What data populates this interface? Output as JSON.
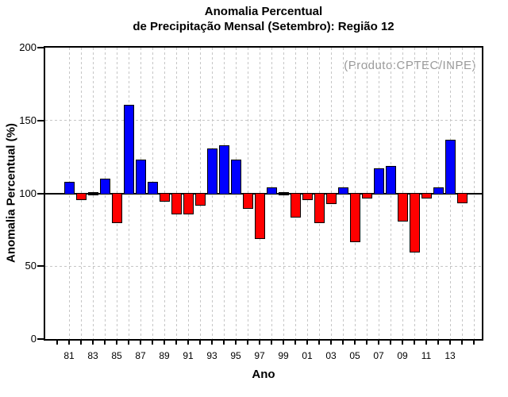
{
  "title": {
    "line1": "Anomalia Percentual",
    "line2": "de Precipitação Mensal (Setembro): Região 12"
  },
  "annotation": {
    "text": "(Produto:CPTEC/INPE)",
    "color": "#9a9a9a"
  },
  "chart_data": {
    "type": "bar",
    "title": "Anomalia Percentual de Precipitação Mensal (Setembro): Região 12",
    "xlabel": "Ano",
    "ylabel": "Anomalia Percentual (%)",
    "ylim": [
      0,
      200
    ],
    "yticks": [
      0,
      50,
      100,
      150,
      200
    ],
    "baseline": 100,
    "dashed_hlines": [
      50,
      150
    ],
    "vertical_grid": "dashed line at every year tick",
    "legend": "none",
    "categories": [
      "81",
      "82",
      "83",
      "84",
      "85",
      "86",
      "87",
      "88",
      "89",
      "90",
      "91",
      "92",
      "93",
      "94",
      "95",
      "96",
      "97",
      "98",
      "99",
      "00",
      "01",
      "02",
      "03",
      "04",
      "05",
      "06",
      "07",
      "08",
      "09",
      "10",
      "11",
      "12",
      "13",
      "14"
    ],
    "values": [
      108,
      96,
      99,
      110,
      80,
      161,
      123,
      108,
      95,
      86,
      86,
      92,
      131,
      133,
      123,
      90,
      69,
      104,
      99,
      84,
      96,
      80,
      93,
      104,
      67,
      97,
      117,
      119,
      81,
      60,
      97,
      104,
      137,
      94
    ],
    "x_tick_labels": [
      "81",
      "83",
      "85",
      "87",
      "89",
      "91",
      "93",
      "95",
      "97",
      "99",
      "01",
      "03",
      "05",
      "07",
      "09",
      "11",
      "13"
    ],
    "colors": {
      "above_baseline": "#0000ff",
      "below_baseline": "#ff0000",
      "near_baseline": "#000000"
    }
  }
}
